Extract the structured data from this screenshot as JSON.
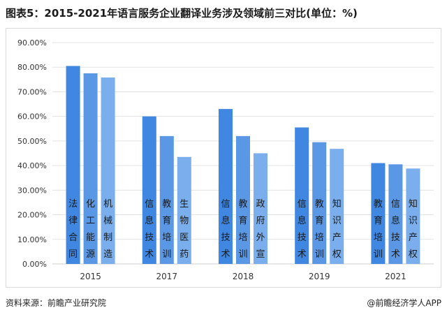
{
  "title": "图表5：2015-2021年语言服务企业翻译业务涉及领域前三对比(单位：%)",
  "source": "资料来源：前瞻产业研究院",
  "brand": "@前瞻经济学人APP",
  "colors": {
    "rank1": "#3f87e0",
    "rank2": "#5a98e6",
    "rank3": "#7aaeec",
    "grid": "#e3e3e3",
    "axis": "#cfcfcf"
  },
  "chart_data": {
    "type": "bar",
    "ylim": [
      0,
      90
    ],
    "yticks": [
      "0.00%",
      "10.00%",
      "20.00%",
      "30.00%",
      "40.00%",
      "50.00%",
      "60.00%",
      "70.00%",
      "80.00%",
      "90.00%"
    ],
    "grid": true,
    "groups": [
      {
        "year": "2015",
        "bars": [
          {
            "label": "法律合同",
            "value": 80.5
          },
          {
            "label": "化工能源",
            "value": 77.5
          },
          {
            "label": "机械制造",
            "value": 75.8
          }
        ]
      },
      {
        "year": "2017",
        "bars": [
          {
            "label": "信息技术",
            "value": 60.0
          },
          {
            "label": "教育培训",
            "value": 52.0
          },
          {
            "label": "生物医药",
            "value": 43.5
          }
        ]
      },
      {
        "year": "2018",
        "bars": [
          {
            "label": "信息技术",
            "value": 63.0
          },
          {
            "label": "教育培训",
            "value": 52.0
          },
          {
            "label": "政府外宣",
            "value": 45.0
          }
        ]
      },
      {
        "year": "2019",
        "bars": [
          {
            "label": "信息技术",
            "value": 55.5
          },
          {
            "label": "教育培训",
            "value": 49.5
          },
          {
            "label": "知识产权",
            "value": 46.8
          }
        ]
      },
      {
        "year": "2021",
        "bars": [
          {
            "label": "教育培训",
            "value": 41.0
          },
          {
            "label": "信息技术",
            "value": 40.5
          },
          {
            "label": "知识产权",
            "value": 38.8
          }
        ]
      }
    ]
  }
}
